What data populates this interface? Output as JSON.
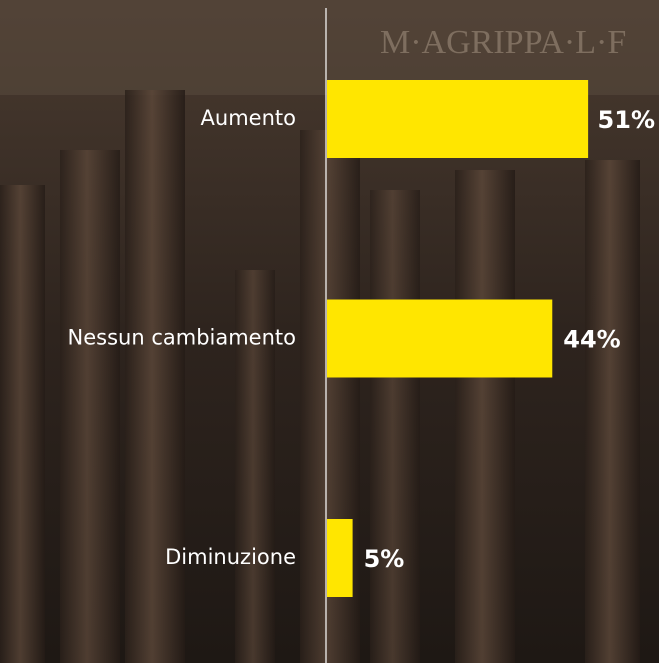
{
  "chart_data": {
    "type": "bar",
    "orientation": "horizontal",
    "categories": [
      "Aumento",
      "Nessun cambiamento",
      "Diminuzione"
    ],
    "values": [
      51,
      44,
      5
    ],
    "value_labels": [
      "51%",
      "44%",
      "5%"
    ],
    "color": "#ffe600"
  }
}
